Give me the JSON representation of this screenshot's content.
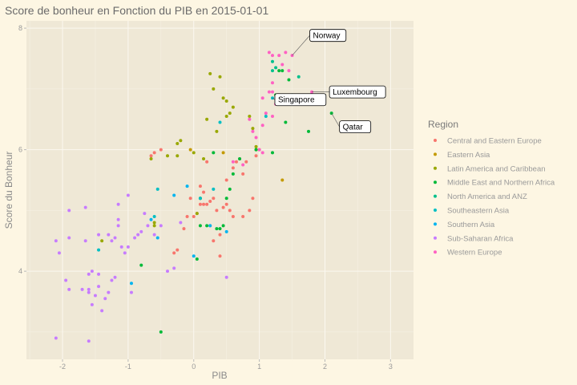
{
  "chart_data": {
    "type": "scatter",
    "title": "Score de bonheur en Fonction du PIB en 2015-01-01",
    "xlabel": "PIB",
    "ylabel": "Score du Bonheur",
    "xlim": [
      -2.55,
      3.35
    ],
    "ylim": [
      2.55,
      8.12
    ],
    "x_ticks": [
      -2,
      -1,
      0,
      1,
      2,
      3
    ],
    "y_ticks": [
      4,
      6,
      8
    ],
    "grid": true,
    "legend_position": "right",
    "legend_title": "Region",
    "background_color": "#efe8d6",
    "page_color": "#fdf6e3",
    "series": [
      {
        "name": "Central and Eastern Europe",
        "color": "#f8766d",
        "points": [
          [
            -0.3,
            4.3
          ],
          [
            -0.25,
            4.35
          ],
          [
            -0.15,
            4.7
          ],
          [
            -0.1,
            4.9
          ],
          [
            0.0,
            4.9
          ],
          [
            0.05,
            4.95
          ],
          [
            0.1,
            5.1
          ],
          [
            0.15,
            5.1
          ],
          [
            0.2,
            5.1
          ],
          [
            0.25,
            4.75
          ],
          [
            0.3,
            5.2
          ],
          [
            0.35,
            5.0
          ],
          [
            0.4,
            4.6
          ],
          [
            0.45,
            5.05
          ],
          [
            0.5,
            5.1
          ],
          [
            0.55,
            5.0
          ],
          [
            0.6,
            5.7
          ],
          [
            0.65,
            5.8
          ],
          [
            0.7,
            5.85
          ],
          [
            0.75,
            5.6
          ],
          [
            0.8,
            5.8
          ],
          [
            0.85,
            5.0
          ],
          [
            0.9,
            5.2
          ],
          [
            0.95,
            5.9
          ],
          [
            1.0,
            6.0
          ],
          [
            0.6,
            4.9
          ],
          [
            0.3,
            4.5
          ],
          [
            0.4,
            4.25
          ],
          [
            0.2,
            5.8
          ],
          [
            0.15,
            5.3
          ],
          [
            -0.05,
            5.2
          ],
          [
            -0.65,
            5.9
          ],
          [
            -0.6,
            5.95
          ],
          [
            -0.5,
            6.0
          ],
          [
            0.1,
            5.4
          ],
          [
            0.5,
            5.5
          ],
          [
            0.75,
            4.9
          ],
          [
            0.25,
            5.15
          ]
        ]
      },
      {
        "name": "Eastern Asia",
        "color": "#c49a00",
        "points": [
          [
            0.45,
            5.95
          ],
          [
            0.95,
            6.0
          ],
          [
            1.35,
            5.5
          ],
          [
            -0.05,
            6.0
          ]
        ]
      },
      {
        "name": "Latin America and Caribbean",
        "color": "#99a800",
        "points": [
          [
            -1.4,
            4.5
          ],
          [
            -0.65,
            5.85
          ],
          [
            -0.4,
            5.9
          ],
          [
            -0.25,
            5.9
          ],
          [
            -0.2,
            6.15
          ],
          [
            -0.25,
            6.1
          ],
          [
            0.0,
            5.95
          ],
          [
            0.2,
            6.5
          ],
          [
            0.25,
            7.25
          ],
          [
            0.3,
            7.0
          ],
          [
            0.4,
            7.2
          ],
          [
            0.45,
            6.85
          ],
          [
            0.5,
            6.8
          ],
          [
            0.5,
            6.55
          ],
          [
            0.55,
            6.6
          ],
          [
            0.6,
            6.7
          ],
          [
            0.35,
            6.3
          ],
          [
            0.85,
            6.55
          ],
          [
            0.9,
            6.35
          ],
          [
            0.95,
            6.05
          ],
          [
            0.15,
            5.85
          ],
          [
            0.1,
            5.2
          ],
          [
            0.05,
            4.95
          ],
          [
            -0.6,
            4.8
          ],
          [
            -0.6,
            4.75
          ]
        ]
      },
      {
        "name": "Middle East and Northern Africa",
        "color": "#00ba38",
        "points": [
          [
            -0.5,
            3.0
          ],
          [
            -0.8,
            4.1
          ],
          [
            0.05,
            4.2
          ],
          [
            0.1,
            4.75
          ],
          [
            0.2,
            4.75
          ],
          [
            0.35,
            4.7
          ],
          [
            0.4,
            4.7
          ],
          [
            0.45,
            4.75
          ],
          [
            0.5,
            5.2
          ],
          [
            0.55,
            5.35
          ],
          [
            0.6,
            5.6
          ],
          [
            0.7,
            5.85
          ],
          [
            0.95,
            6.0
          ],
          [
            1.2,
            5.95
          ],
          [
            1.4,
            6.45
          ],
          [
            1.25,
            6.9
          ],
          [
            1.3,
            7.3
          ],
          [
            1.35,
            7.3
          ],
          [
            1.75,
            6.3
          ],
          [
            1.45,
            7.15
          ],
          [
            1.5,
            6.9
          ],
          [
            2.1,
            6.6
          ],
          [
            0.3,
            5.95
          ],
          [
            0.1,
            5.2
          ]
        ]
      },
      {
        "name": "North America and ANZ",
        "color": "#00c08b",
        "points": [
          [
            1.2,
            7.3
          ],
          [
            1.25,
            7.35
          ],
          [
            1.2,
            7.45
          ],
          [
            1.6,
            7.2
          ]
        ]
      },
      {
        "name": "Southeastern Asia",
        "color": "#00bfc4",
        "points": [
          [
            -1.45,
            4.35
          ],
          [
            -0.6,
            4.9
          ],
          [
            -0.55,
            5.35
          ],
          [
            0.1,
            5.2
          ],
          [
            0.3,
            5.35
          ],
          [
            0.4,
            6.45
          ],
          [
            1.2,
            6.85
          ],
          [
            1.7,
            6.75
          ],
          [
            1.1,
            6.55
          ]
        ]
      },
      {
        "name": "Southern Asia",
        "color": "#00b4f0",
        "points": [
          [
            -0.95,
            3.8
          ],
          [
            -0.55,
            4.55
          ],
          [
            -0.3,
            5.25
          ],
          [
            -0.1,
            5.4
          ],
          [
            0.0,
            4.25
          ],
          [
            0.25,
            4.75
          ],
          [
            -0.65,
            4.85
          ],
          [
            0.5,
            4.65
          ]
        ]
      },
      {
        "name": "Sub-Saharan Africa",
        "color": "#c77cff",
        "points": [
          [
            -2.1,
            2.9
          ],
          [
            -1.6,
            2.85
          ],
          [
            -2.1,
            4.5
          ],
          [
            -2.05,
            4.3
          ],
          [
            -1.9,
            4.55
          ],
          [
            -1.9,
            5.0
          ],
          [
            -1.65,
            5.05
          ],
          [
            -1.95,
            3.85
          ],
          [
            -1.9,
            3.7
          ],
          [
            -1.7,
            3.7
          ],
          [
            -1.6,
            3.7
          ],
          [
            -1.6,
            3.95
          ],
          [
            -1.55,
            3.45
          ],
          [
            -1.5,
            3.6
          ],
          [
            -1.45,
            3.75
          ],
          [
            -1.4,
            3.35
          ],
          [
            -1.35,
            3.55
          ],
          [
            -1.3,
            3.65
          ],
          [
            -1.25,
            3.85
          ],
          [
            -1.2,
            3.9
          ],
          [
            -1.25,
            4.5
          ],
          [
            -1.2,
            4.55
          ],
          [
            -1.15,
            4.85
          ],
          [
            -1.1,
            4.4
          ],
          [
            -1.05,
            4.3
          ],
          [
            -1.0,
            4.4
          ],
          [
            -0.95,
            3.65
          ],
          [
            -0.9,
            4.55
          ],
          [
            -0.85,
            4.6
          ],
          [
            -0.8,
            4.65
          ],
          [
            -0.7,
            4.75
          ],
          [
            -0.6,
            4.6
          ],
          [
            -0.5,
            4.75
          ],
          [
            -0.4,
            4.0
          ],
          [
            -0.3,
            4.05
          ],
          [
            -0.2,
            4.8
          ],
          [
            0.5,
            3.9
          ],
          [
            -1.45,
            4.6
          ],
          [
            -1.3,
            4.6
          ],
          [
            -1.65,
            4.5
          ],
          [
            -1.45,
            3.95
          ],
          [
            -1.15,
            5.1
          ],
          [
            -1.0,
            5.25
          ],
          [
            -1.15,
            4.75
          ],
          [
            -1.55,
            4.0
          ],
          [
            -0.75,
            4.95
          ],
          [
            -1.6,
            3.65
          ]
        ]
      },
      {
        "name": "Western Europe",
        "color": "#ff61c3",
        "points": [
          [
            1.15,
            7.6
          ],
          [
            1.2,
            7.55
          ],
          [
            1.3,
            7.55
          ],
          [
            1.4,
            7.6
          ],
          [
            1.5,
            7.55
          ],
          [
            1.35,
            7.4
          ],
          [
            1.45,
            7.3
          ],
          [
            1.2,
            7.1
          ],
          [
            1.15,
            6.95
          ],
          [
            1.2,
            6.95
          ],
          [
            1.25,
            6.75
          ],
          [
            1.1,
            6.6
          ],
          [
            1.05,
            6.4
          ],
          [
            1.0,
            6.0
          ],
          [
            1.3,
            6.9
          ],
          [
            1.05,
            6.85
          ],
          [
            0.95,
            6.2
          ],
          [
            0.85,
            6.5
          ],
          [
            0.9,
            6.3
          ],
          [
            1.8,
            6.95
          ],
          [
            0.75,
            5.75
          ],
          [
            0.6,
            5.8
          ],
          [
            1.05,
            5.95
          ],
          [
            1.2,
            6.55
          ]
        ]
      }
    ],
    "annotations": [
      {
        "label": "Norway",
        "x": 1.5,
        "y": 7.55
      },
      {
        "label": "Luxembourg",
        "x": 1.8,
        "y": 6.95
      },
      {
        "label": "Singapore",
        "x": 1.2,
        "y": 6.85
      },
      {
        "label": "Qatar",
        "x": 2.1,
        "y": 6.6
      }
    ]
  }
}
